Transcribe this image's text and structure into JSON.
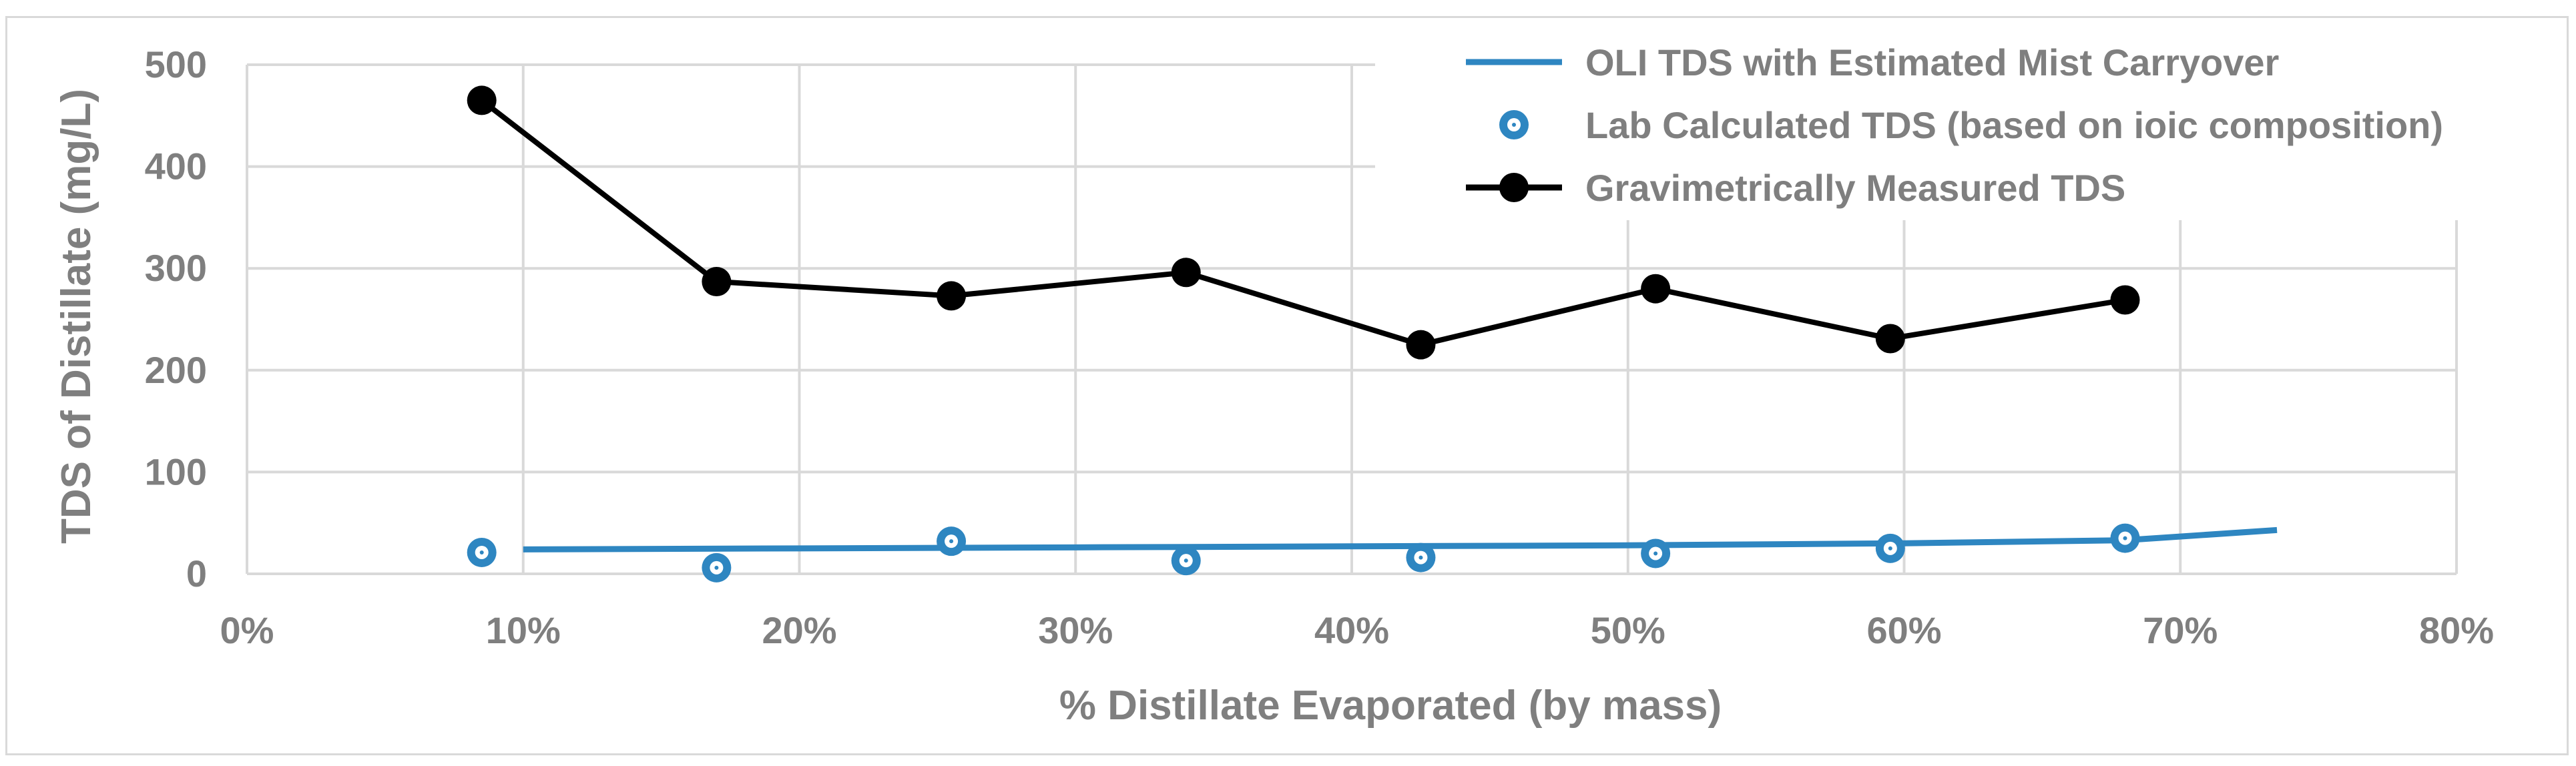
{
  "chart_data": {
    "type": "line",
    "xlabel": "% Distillate Evaporated (by mass)",
    "ylabel": "TDS of Distillate (mg/L)",
    "xlim": [
      0,
      80
    ],
    "ylim": [
      0,
      500
    ],
    "x_ticks": [
      0,
      10,
      20,
      30,
      40,
      50,
      60,
      70,
      80
    ],
    "x_tick_labels": [
      "0%",
      "10%",
      "20%",
      "30%",
      "40%",
      "50%",
      "60%",
      "70%",
      "80%"
    ],
    "y_ticks": [
      0,
      100,
      200,
      300,
      400,
      500
    ],
    "y_tick_labels": [
      "0",
      "100",
      "200",
      "300",
      "400",
      "500"
    ],
    "grid": true,
    "legend_position": "top-right",
    "series": [
      {
        "name": "OLI TDS with Estimated Mist Carryover",
        "style": "line",
        "color": "#2e86c1",
        "x": [
          10,
          20,
          30,
          40,
          50,
          60,
          68,
          73.5
        ],
        "y": [
          24,
          25,
          26,
          27,
          28,
          30,
          33,
          43
        ]
      },
      {
        "name": "Lab Calculated TDS (based on ioic composition)",
        "style": "markers",
        "color": "#2e86c1",
        "x": [
          8.5,
          17,
          25.5,
          34,
          42.5,
          51,
          59.5,
          68
        ],
        "y": [
          21,
          6,
          32,
          13,
          16,
          20,
          25,
          35
        ]
      },
      {
        "name": "Gravimetrically Measured TDS",
        "style": "line+markers",
        "color": "#000000",
        "x": [
          8.5,
          17,
          25.5,
          34,
          42.5,
          51,
          59.5,
          68
        ],
        "y": [
          465,
          287,
          273,
          296,
          225,
          280,
          231,
          269
        ]
      }
    ]
  }
}
